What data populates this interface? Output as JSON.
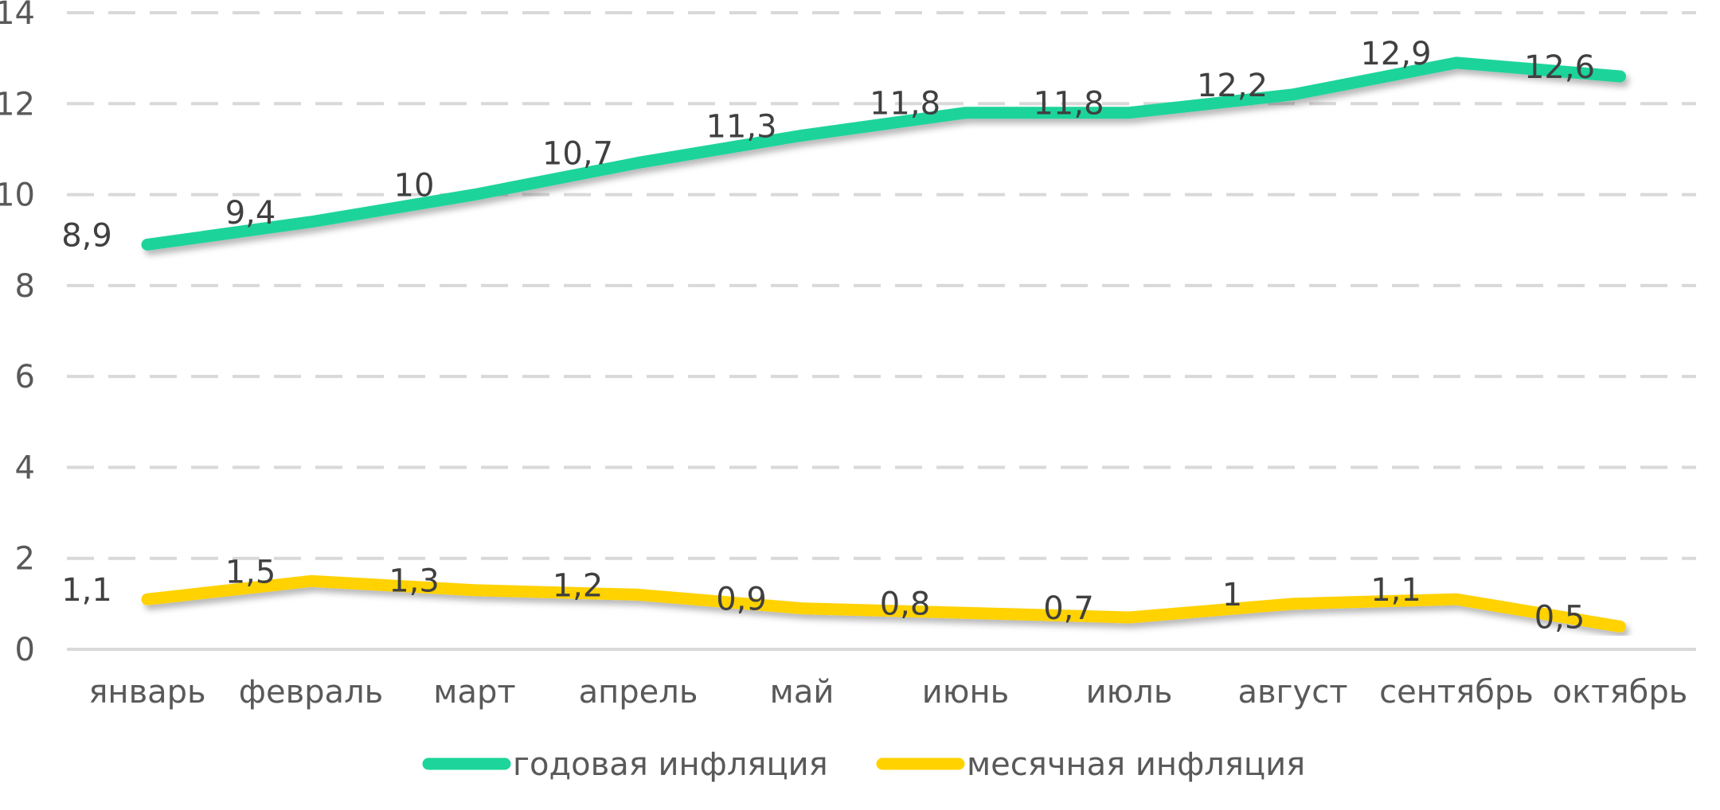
{
  "chart_data": {
    "type": "line",
    "title": "",
    "xlabel": "",
    "ylabel": "",
    "ylim": [
      0,
      14
    ],
    "yticks": [
      "0",
      "2",
      "4",
      "6",
      "8",
      "10",
      "12",
      "14"
    ],
    "grid": true,
    "legend_position": "bottom",
    "categories": [
      "январь",
      "февраль",
      "март",
      "апрель",
      "май",
      "июнь",
      "июль",
      "август",
      "сентябрь",
      "октябрь"
    ],
    "series": [
      {
        "name": "годовая инфляция",
        "color": "#1DD49A",
        "values": [
          8.9,
          9.4,
          10,
          10.7,
          11.3,
          11.8,
          11.8,
          12.2,
          12.9,
          12.6
        ],
        "labels": [
          "8,9",
          "9,4",
          "10",
          "10,7",
          "11,3",
          "11,8",
          "11,8",
          "12,2",
          "12,9",
          "12,6"
        ]
      },
      {
        "name": "месячная инфляция",
        "color": "#FFD200",
        "values": [
          1.1,
          1.5,
          1.3,
          1.2,
          0.9,
          0.8,
          0.7,
          1,
          1.1,
          0.5
        ],
        "labels": [
          "1,1",
          "1,5",
          "1,3",
          "1,2",
          "0,9",
          "0,8",
          "0,7",
          "1",
          "1,1",
          "0,5"
        ]
      }
    ]
  }
}
